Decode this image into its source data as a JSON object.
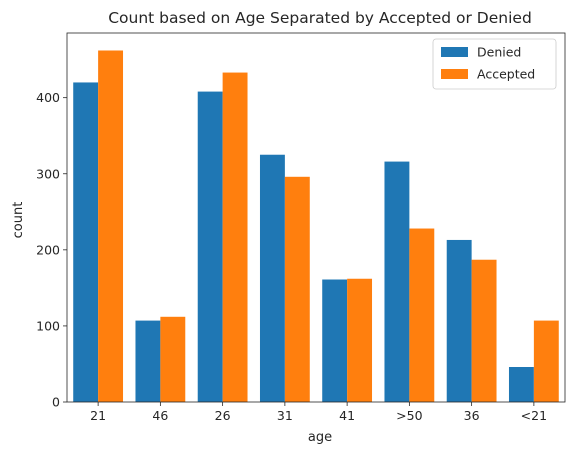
{
  "chart_data": {
    "type": "bar",
    "title": "Count based on Age Separated by Accepted or Denied",
    "xlabel": "age",
    "ylabel": "count",
    "categories": [
      "21",
      "46",
      "26",
      "31",
      "41",
      ">50",
      "36",
      "<21"
    ],
    "series": [
      {
        "name": "Denied",
        "color": "#1f77b4",
        "values": [
          420,
          107,
          408,
          325,
          161,
          316,
          213,
          46
        ]
      },
      {
        "name": "Accepted",
        "color": "#ff7f0e",
        "values": [
          462,
          112,
          433,
          296,
          162,
          228,
          187,
          107
        ]
      }
    ],
    "ylim": [
      0,
      485
    ],
    "yticks": [
      0,
      100,
      200,
      300,
      400
    ],
    "grid": false,
    "legend_position": "top-right"
  }
}
